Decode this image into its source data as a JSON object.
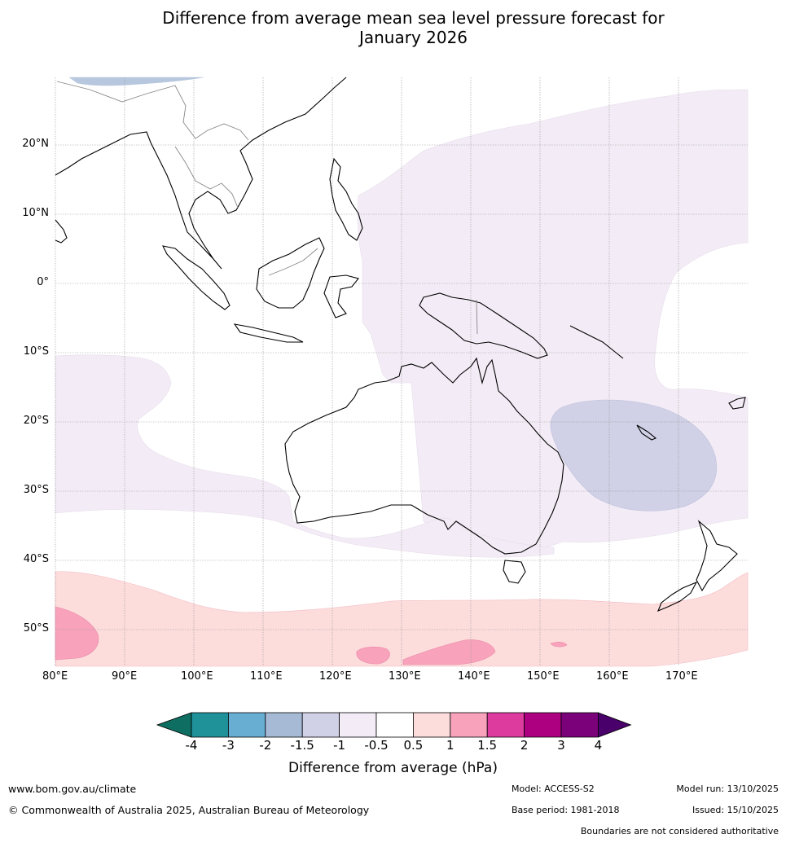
{
  "title_line1": "Difference from average mean sea level pressure forecast for",
  "title_line2": "January 2026",
  "map": {
    "lat_labels": [
      "20°N",
      "10°N",
      "0°",
      "10°S",
      "20°S",
      "30°S",
      "40°S",
      "50°S"
    ],
    "lon_labels": [
      "80°E",
      "90°E",
      "100°E",
      "110°E",
      "120°E",
      "130°E",
      "140°E",
      "150°E",
      "160°E",
      "170°E"
    ],
    "lat_values": [
      20,
      10,
      0,
      -10,
      -20,
      -30,
      -40,
      -50
    ],
    "lon_values": [
      80,
      90,
      100,
      110,
      120,
      130,
      140,
      150,
      160,
      170
    ]
  },
  "colorbar": {
    "title": "Difference from average (hPa)",
    "ticks": [
      "-4",
      "-3",
      "-2",
      "-1.5",
      "-1",
      "-0.5",
      "0.5",
      "1",
      "1.5",
      "2",
      "3",
      "4"
    ],
    "colors": [
      "#0e6e62",
      "#1f9199",
      "#68aed3",
      "#a6bad6",
      "#d0d0e6",
      "#f3ecf6",
      "#ffffff",
      "#fddcdc",
      "#f8a2bc",
      "#de3b9f",
      "#ad0080",
      "#7b017a",
      "#4a006a"
    ]
  },
  "footer": {
    "website": "www.bom.gov.au/climate",
    "copyright": "© Commonwealth of Australia 2025, Australian Bureau of Meteorology",
    "model": "Model: ACCESS-S2",
    "base_period": "Base period: 1981-2018",
    "model_run": "Model run: 13/10/2025",
    "issued": "Issued: 15/10/2025",
    "disclaimer": "Boundaries are not considered authoritative"
  }
}
